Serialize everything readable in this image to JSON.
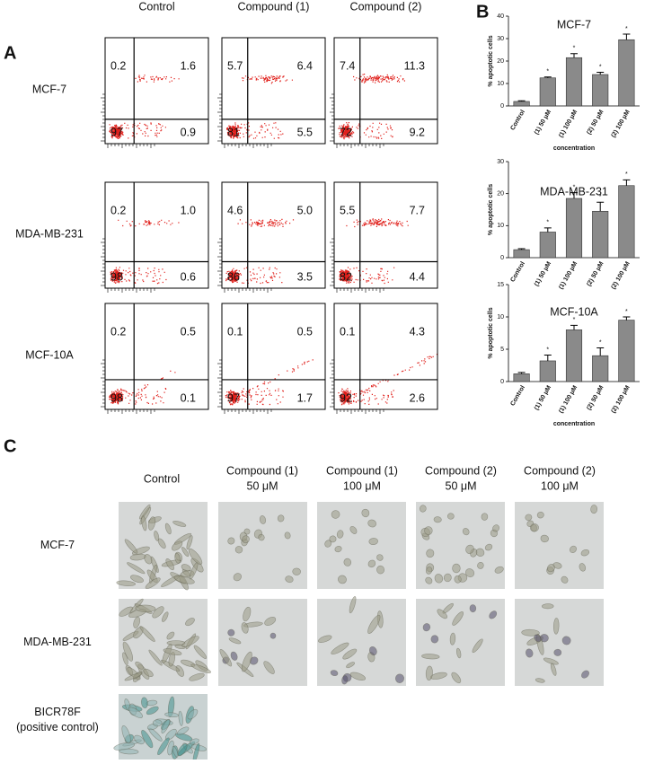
{
  "panel_a": {
    "label": "A",
    "columns": [
      "Control",
      "Compound (1)",
      "Compound (2)"
    ],
    "rows": [
      {
        "name": "MCF-7",
        "plots": [
          [
            "0.2",
            "1.6",
            "97",
            "0.9"
          ],
          [
            "5.7",
            "6.4",
            "81",
            "5.5"
          ],
          [
            "7.4",
            "11.3",
            "72",
            "9.2"
          ]
        ]
      },
      {
        "name": "MDA-MB-231",
        "plots": [
          [
            "0.2",
            "1.0",
            "98",
            "0.6"
          ],
          [
            "4.6",
            "5.0",
            "86",
            "3.5"
          ],
          [
            "5.5",
            "7.7",
            "82",
            "4.4"
          ]
        ]
      },
      {
        "name": "MCF-10A",
        "plots": [
          [
            "0.2",
            "0.5",
            "98",
            "0.1"
          ],
          [
            "0.1",
            "0.5",
            "97",
            "1.7"
          ],
          [
            "0.1",
            "4.3",
            "92",
            "2.6"
          ]
        ]
      }
    ]
  },
  "panel_b": {
    "label": "B"
  },
  "chart_data": [
    {
      "type": "bar",
      "title": "MCF-7",
      "ylabel": "% apoptotic cells",
      "xlabel": "concentration",
      "categories": [
        "Control",
        "(1) 50 μM",
        "(1) 100 μM",
        "(2) 50 μM",
        "(2) 100 μM"
      ],
      "values": [
        2,
        12.5,
        21.5,
        14,
        29.5
      ],
      "errors": [
        0.3,
        0.4,
        1.8,
        1,
        2.5
      ],
      "annotations": [
        {
          "x": "(1) 50 μM",
          "text": "*"
        },
        {
          "x": "(1) 100 μM",
          "text": "*"
        },
        {
          "x": "(2) 50 μM",
          "text": "*"
        },
        {
          "x": "(2) 100 μM",
          "text": "*"
        }
      ],
      "color": "#8a8a8a",
      "ylim": [
        0,
        40
      ],
      "yticks": [
        0,
        10,
        20,
        30,
        40
      ]
    },
    {
      "type": "bar",
      "title": "MDA-MB-231",
      "ylabel": "% apoptotic cells",
      "categories": [
        "Control",
        "(1) 50 μM",
        "(1) 100 μM",
        "(2) 50 μM",
        "(2) 100 μM"
      ],
      "values": [
        2.5,
        8,
        18.5,
        14.5,
        22.5
      ],
      "errors": [
        0.3,
        1.3,
        1.8,
        2.8,
        1.8
      ],
      "annotations": [
        {
          "x": "(1) 50 μM",
          "text": "*"
        },
        {
          "x": "(1) 100 μM",
          "text": "*"
        },
        {
          "x": "(2) 50 μM",
          "text": "*"
        },
        {
          "x": "(2) 100 μM",
          "text": "*"
        }
      ],
      "color": "#8a8a8a",
      "ylim": [
        0,
        30
      ],
      "yticks": [
        0,
        10,
        20,
        30
      ]
    },
    {
      "type": "bar",
      "title": "MCF-10A",
      "ylabel": "% apoptotic cells",
      "xlabel": "concentration",
      "categories": [
        "Control",
        "(1) 50 μM",
        "(1) 100 μM",
        "(2) 50 μM",
        "(2) 100 μM"
      ],
      "values": [
        1.2,
        3.2,
        8,
        4,
        9.5
      ],
      "errors": [
        0.2,
        0.9,
        0.7,
        1.2,
        0.5
      ],
      "annotations": [
        {
          "x": "(1) 50 μM",
          "text": "*"
        },
        {
          "x": "(1) 100 μM",
          "text": "*"
        },
        {
          "x": "(2) 50 μM",
          "text": "*"
        },
        {
          "x": "(2) 100 μM",
          "text": "*"
        }
      ],
      "color": "#8a8a8a",
      "ylim": [
        0,
        15
      ],
      "yticks": [
        0,
        5,
        10,
        15
      ]
    }
  ],
  "panel_c": {
    "label": "C",
    "columns": [
      [
        "Control"
      ],
      [
        "Compound (1)",
        "50 μM"
      ],
      [
        "Compound (1)",
        "100 μM"
      ],
      [
        "Compound (2)",
        "50 μM"
      ],
      [
        "Compound (2)",
        "100 μM"
      ]
    ],
    "rows": [
      [
        "MCF-7"
      ],
      [
        "MDA-MB-231"
      ],
      [
        "BICR78F",
        "(positive control)"
      ]
    ]
  }
}
